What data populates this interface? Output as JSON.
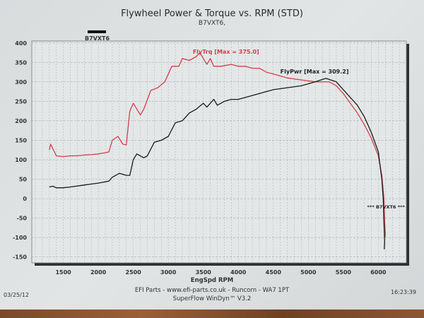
{
  "chart_data": {
    "type": "line",
    "title": "Flywheel Power & Torque vs. RPM (STD)",
    "subtitle": "B7VXT6,",
    "legend": {
      "label": "B7VXT6",
      "placement": "top-left"
    },
    "xlabel": "EngSpd RPM",
    "ylabel": "",
    "xlim": [
      1050,
      6400
    ],
    "ylim": [
      -165,
      405
    ],
    "x_ticks": [
      1500,
      2000,
      2500,
      3000,
      3500,
      4000,
      4500,
      5000,
      5500,
      6000
    ],
    "y_ticks": [
      400,
      350,
      300,
      250,
      200,
      150,
      100,
      50,
      0,
      -50,
      -100,
      -150
    ],
    "grid": true,
    "annotation": "*** B7VXT6 ***",
    "series": [
      {
        "name": "FlyTrq",
        "label": "FlyTrq [Max = 375.0]",
        "color": "#d0404a",
        "x": [
          1300,
          1320,
          1400,
          1500,
          1600,
          1700,
          1800,
          1900,
          2000,
          2100,
          2150,
          2200,
          2280,
          2350,
          2400,
          2450,
          2500,
          2600,
          2650,
          2750,
          2850,
          2950,
          3050,
          3150,
          3200,
          3300,
          3400,
          3450,
          3550,
          3600,
          3650,
          3750,
          3900,
          4000,
          4100,
          4200,
          4300,
          4400,
          4500,
          4700,
          4900,
          5100,
          5300,
          5400,
          5500,
          5600,
          5700,
          5800,
          5900,
          6000,
          6050,
          6080,
          6090,
          6100,
          6095
        ],
        "y": [
          125,
          140,
          110,
          108,
          110,
          110,
          112,
          113,
          115,
          118,
          120,
          150,
          160,
          140,
          138,
          225,
          245,
          215,
          230,
          278,
          285,
          300,
          340,
          340,
          360,
          355,
          365,
          375,
          345,
          360,
          340,
          340,
          345,
          340,
          340,
          335,
          335,
          325,
          320,
          310,
          305,
          300,
          300,
          290,
          270,
          245,
          220,
          190,
          155,
          110,
          60,
          0,
          -60,
          -90,
          -100
        ]
      },
      {
        "name": "FlyPwr",
        "label": "FlyPwr [Max = 309.2]",
        "color": "#1a1a1a",
        "x": [
          1300,
          1350,
          1400,
          1500,
          1600,
          1800,
          2000,
          2150,
          2200,
          2300,
          2400,
          2450,
          2500,
          2550,
          2650,
          2700,
          2800,
          2900,
          3000,
          3100,
          3200,
          3300,
          3400,
          3500,
          3550,
          3650,
          3700,
          3800,
          3900,
          4000,
          4200,
          4300,
          4500,
          4700,
          4900,
          5100,
          5250,
          5400,
          5500,
          5600,
          5700,
          5800,
          5900,
          6000,
          6050,
          6070,
          6080,
          6090,
          6085
        ],
        "y": [
          30,
          32,
          28,
          28,
          30,
          35,
          40,
          45,
          55,
          65,
          60,
          60,
          100,
          115,
          105,
          110,
          145,
          150,
          160,
          195,
          200,
          220,
          230,
          245,
          235,
          255,
          240,
          250,
          255,
          255,
          265,
          270,
          280,
          285,
          290,
          300,
          309,
          300,
          280,
          260,
          240,
          210,
          170,
          120,
          50,
          0,
          -60,
          -110,
          -130
        ]
      }
    ]
  },
  "footer": {
    "company": "EFI Parts - www.efi-parts.co.uk - Runcorn - WA7 1PT",
    "software": "SuperFlow WinDyn™ V3.2",
    "date": "03/25/12",
    "time": "16:23:39"
  }
}
